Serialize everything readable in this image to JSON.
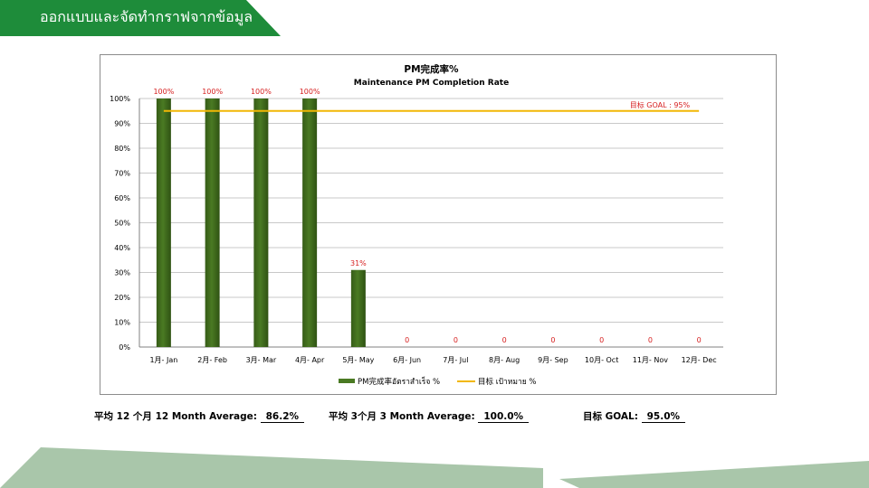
{
  "header": {
    "title": "ออกแบบและจัดทำกราฟจากข้อมูล",
    "accent_color": "#1e8c3a"
  },
  "chart_data": {
    "type": "bar",
    "title": "PM完成率%",
    "subtitle": "Maintenance PM Completion Rate",
    "categories": [
      "1月- Jan",
      "2月- Feb",
      "3月- Mar",
      "4月- Apr",
      "5月- May",
      "6月- Jun",
      "7月- Jul",
      "8月- Aug",
      "9月- Sep",
      "10月- Oct",
      "11月- Nov",
      "12月- Dec"
    ],
    "series": [
      {
        "name": "PM完成率อัตราสำเร็จ %",
        "values": [
          100,
          100,
          100,
          100,
          31,
          0,
          0,
          0,
          0,
          0,
          0,
          0
        ],
        "color": "#4a7a23"
      },
      {
        "name": "目标 เป้าหมาย %",
        "values": [
          95,
          95,
          95,
          95,
          95,
          95,
          95,
          95,
          95,
          95,
          95,
          95
        ],
        "color": "#f2b705"
      }
    ],
    "data_labels": [
      "100%",
      "100%",
      "100%",
      "100%",
      "31%",
      "0",
      "0",
      "0",
      "0",
      "0",
      "0",
      "0"
    ],
    "goal_label": "目标 GOAL : 95%",
    "ylim": [
      0,
      100
    ],
    "yticks": [
      "0%",
      "10%",
      "20%",
      "30%",
      "40%",
      "50%",
      "60%",
      "70%",
      "80%",
      "90%",
      "100%"
    ],
    "grid": true,
    "legend_position": "bottom"
  },
  "stats": {
    "avg12_label": "平均 12 个月 12 Month Average:",
    "avg12_value": "86.2%",
    "avg3_label": "平均 3个月 3 Month Average:",
    "avg3_value": "100.0%",
    "goal_label": "目标 GOAL:",
    "goal_value": "95.0%"
  }
}
